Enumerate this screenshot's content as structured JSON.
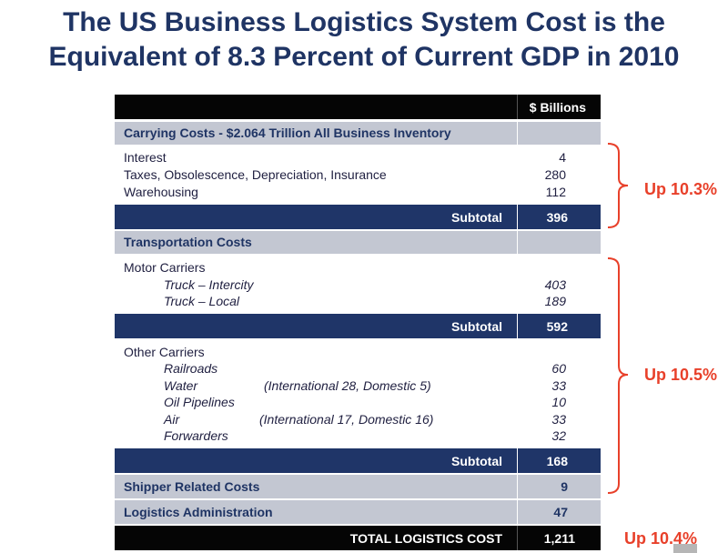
{
  "title_line1": "The US Business Logistics System Cost is the",
  "title_line2": "Equivalent of 8.3 Percent of Current GDP in 2010",
  "header_units": "$ Billions",
  "carrying_header": "Carrying Costs - $2.064 Trillion All Business Inventory",
  "carrying_items": [
    {
      "label": "Interest",
      "value": "4"
    },
    {
      "label": "Taxes, Obsolescence, Depreciation, Insurance",
      "value": "280"
    },
    {
      "label": "Warehousing",
      "value": "112"
    }
  ],
  "subtotal_label": "Subtotal",
  "carrying_subtotal": "396",
  "transport_header": "Transportation Costs",
  "motor_label": "Motor Carriers",
  "motor_items": [
    {
      "label": "Truck – Intercity",
      "value": "403"
    },
    {
      "label": "Truck – Local",
      "value": "189"
    }
  ],
  "motor_subtotal": "592",
  "other_label": "Other Carriers",
  "other_items": [
    {
      "label": "Railroads",
      "note": "",
      "value": "60"
    },
    {
      "label": "Water",
      "note": "(International 28, Domestic 5)",
      "value": "33"
    },
    {
      "label": "Oil Pipelines",
      "note": "",
      "value": "10"
    },
    {
      "label": "Air",
      "note": "(International 17, Domestic 16)",
      "value": "33"
    },
    {
      "label": "Forwarders",
      "note": "",
      "value": "32"
    }
  ],
  "other_subtotal": "168",
  "shipper_label": "Shipper Related Costs",
  "shipper_value": "9",
  "admin_label": "Logistics Administration",
  "admin_value": "47",
  "total_label": "TOTAL LOGISTICS COST",
  "total_value": "1,211",
  "notes": {
    "carrying": "Up 10.3%",
    "transport": "Up 10.5%",
    "total": "Up 10.4%"
  },
  "colors": {
    "title": "#1f3464",
    "navy": "#1f3568",
    "gray": "#c3c7d2",
    "accent": "#e8402a"
  }
}
